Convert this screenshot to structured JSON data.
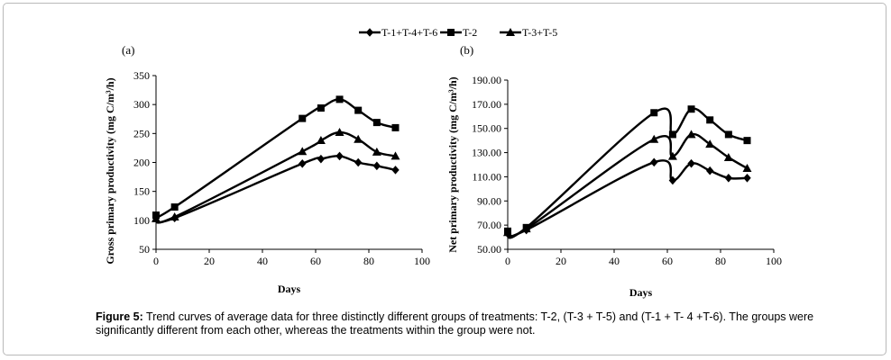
{
  "caption": {
    "label": "Figure 5:",
    "text": "Trend curves of average data for three distinctly different groups of treatments: T-2, (T-3 + T-5) and (T-1 + T- 4 +T-6). The groups were significantly different from each other, whereas the treatments within the group were not."
  },
  "legend": [
    {
      "name": "T-1+T-4+T-6",
      "marker": "diamond"
    },
    {
      "name": "T-2",
      "marker": "square"
    },
    {
      "name": "T-3+T-5",
      "marker": "triangle"
    }
  ],
  "chart_data": [
    {
      "type": "line",
      "panel_label": "(a)",
      "xlabel": "Days",
      "ylabel": "Gross primary productivity (mg C/m³/h)",
      "xlim": [
        0,
        100
      ],
      "ylim": [
        50,
        350
      ],
      "xticks": [
        0,
        20,
        40,
        60,
        80,
        100
      ],
      "yticks": [
        50,
        100,
        150,
        200,
        250,
        300,
        350
      ],
      "ytick_format": "int",
      "grid": false,
      "legend_position": "top-center",
      "series": [
        {
          "name": "T-1+T-4+T-6",
          "marker": "diamond",
          "x": [
            0,
            7,
            55,
            62,
            69,
            76,
            83,
            90
          ],
          "y": [
            104,
            104,
            198,
            206,
            211,
            200,
            194,
            187
          ]
        },
        {
          "name": "T-2",
          "marker": "square",
          "x": [
            0,
            7,
            55,
            62,
            69,
            76,
            83,
            90
          ],
          "y": [
            109,
            123,
            276,
            294,
            309,
            290,
            269,
            260
          ]
        },
        {
          "name": "T-3+T-5",
          "marker": "triangle",
          "x": [
            0,
            7,
            55,
            62,
            69,
            76,
            83,
            90
          ],
          "y": [
            103,
            106,
            219,
            238,
            252,
            240,
            218,
            211
          ]
        }
      ]
    },
    {
      "type": "line",
      "panel_label": "(b)",
      "xlabel": "Days",
      "ylabel": "Net primary productivity (mg C/m³/h)",
      "xlim": [
        0,
        100
      ],
      "ylim": [
        50,
        190
      ],
      "xticks": [
        0,
        20,
        40,
        60,
        80,
        100
      ],
      "yticks": [
        50,
        70,
        90,
        110,
        130,
        150,
        170,
        190
      ],
      "ytick_format": "2dp",
      "grid": false,
      "legend_position": "top-center",
      "series": [
        {
          "name": "T-1+T-4+T-6",
          "marker": "diamond",
          "x": [
            0,
            7,
            55,
            62,
            69,
            76,
            83,
            90
          ],
          "y": [
            63,
            66,
            122,
            107,
            121,
            115,
            109,
            109
          ]
        },
        {
          "name": "T-2",
          "marker": "square",
          "x": [
            0,
            7,
            55,
            62,
            69,
            76,
            83,
            90
          ],
          "y": [
            65,
            68,
            163,
            145,
            166,
            157,
            145,
            140
          ]
        },
        {
          "name": "T-3+T-5",
          "marker": "triangle",
          "x": [
            0,
            7,
            55,
            62,
            69,
            76,
            83,
            90
          ],
          "y": [
            64,
            67,
            141,
            127,
            145,
            137,
            126,
            117
          ]
        }
      ]
    }
  ]
}
